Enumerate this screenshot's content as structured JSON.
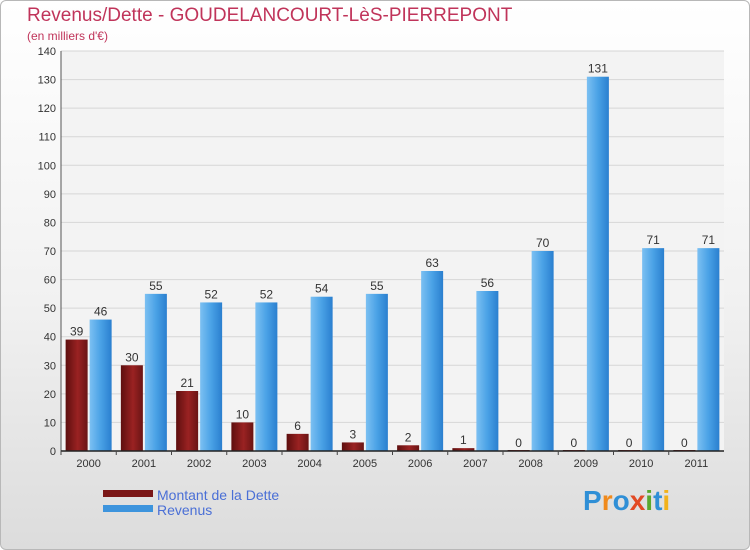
{
  "chart_data": {
    "type": "bar",
    "title": "Revenus/Dette - GOUDELANCOURT-LèS-PIERREPONT",
    "subtitle": "(en milliers d'€)",
    "xlabel": "",
    "ylabel": "",
    "categories": [
      "2000",
      "2001",
      "2002",
      "2003",
      "2004",
      "2005",
      "2006",
      "2007",
      "2008",
      "2009",
      "2010",
      "2011"
    ],
    "series": [
      {
        "name": "Montant de la Dette",
        "color": "#8b1e1e",
        "values": [
          39,
          30,
          21,
          10,
          6,
          3,
          2,
          1,
          0,
          0,
          0,
          0
        ]
      },
      {
        "name": "Revenus",
        "color": "#3d94dd",
        "values": [
          46,
          55,
          52,
          52,
          54,
          55,
          63,
          56,
          70,
          131,
          71,
          71
        ]
      }
    ],
    "ylim": [
      0,
      140
    ],
    "yticks": [
      0,
      10,
      20,
      30,
      40,
      50,
      60,
      70,
      80,
      90,
      100,
      110,
      120,
      130,
      140
    ],
    "grid": true,
    "legend": "bottom-left"
  },
  "logo": {
    "text": "Proxiti",
    "letters": [
      {
        "char": "P",
        "color": "#2f8fd6"
      },
      {
        "char": "r",
        "color": "#f08a1c"
      },
      {
        "char": "o",
        "color": "#2f8fd6"
      },
      {
        "char": "x",
        "color": "#e24a24"
      },
      {
        "char": "i",
        "color": "#5aa82e"
      },
      {
        "char": "t",
        "color": "#2f8fd6"
      },
      {
        "char": "i",
        "color": "#f2b21b"
      }
    ]
  }
}
